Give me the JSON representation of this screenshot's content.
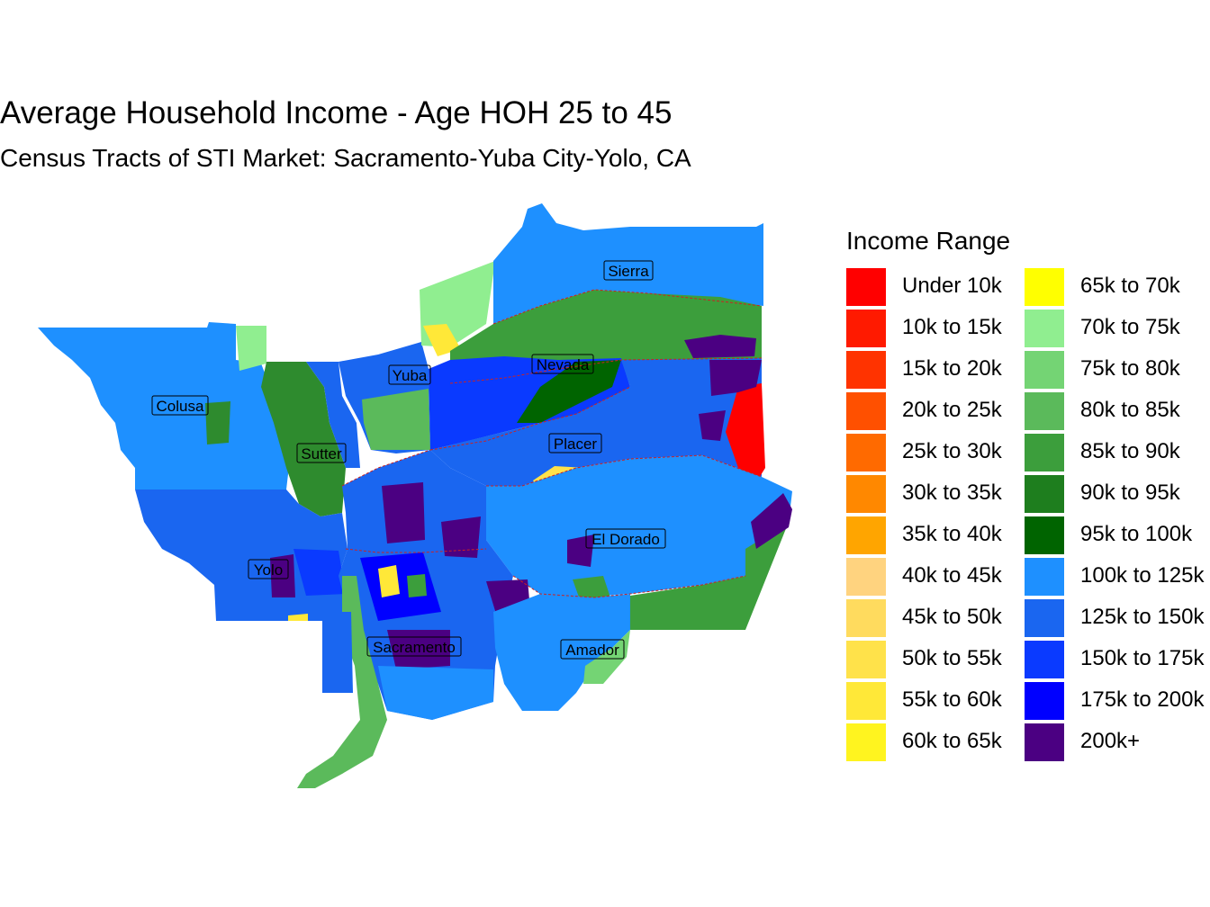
{
  "title": "Average Household Income - Age HOH 25 to 45",
  "subtitle": "Census Tracts of STI Market: Sacramento-Yuba City-Yolo, CA",
  "legend": {
    "title": "Income Range",
    "items": [
      {
        "label": "Under 10k",
        "color": "#FF0000"
      },
      {
        "label": "10k to 15k",
        "color": "#FF1A00"
      },
      {
        "label": "15k to 20k",
        "color": "#FF3300"
      },
      {
        "label": "20k to 25k",
        "color": "#FF5000"
      },
      {
        "label": "25k to 30k",
        "color": "#FF6A00"
      },
      {
        "label": "30k to 35k",
        "color": "#FF8800"
      },
      {
        "label": "35k to 40k",
        "color": "#FFA500"
      },
      {
        "label": "40k to 45k",
        "color": "#FFD37F"
      },
      {
        "label": "45k to 50k",
        "color": "#FFDB5E"
      },
      {
        "label": "50k to 55k",
        "color": "#FFE24A"
      },
      {
        "label": "55k to 60k",
        "color": "#FFE838"
      },
      {
        "label": "60k to 65k",
        "color": "#FFF41F"
      },
      {
        "label": "65k to 70k",
        "color": "#FFFF00"
      },
      {
        "label": "70k to 75k",
        "color": "#90EE90"
      },
      {
        "label": "75k to 80k",
        "color": "#74D474"
      },
      {
        "label": "80k to 85k",
        "color": "#5BBA5B"
      },
      {
        "label": "85k to 90k",
        "color": "#3C9E3C"
      },
      {
        "label": "90k to 95k",
        "color": "#1E7E1E"
      },
      {
        "label": "95k to 100k",
        "color": "#006400"
      },
      {
        "label": "100k to 125k",
        "color": "#1E90FF"
      },
      {
        "label": "125k to 150k",
        "color": "#1A66F0"
      },
      {
        "label": "150k to 175k",
        "color": "#0A3AFF"
      },
      {
        "label": "175k to 200k",
        "color": "#0000FF"
      },
      {
        "label": "200k+",
        "color": "#4B0082"
      }
    ]
  },
  "counties": [
    "Sierra",
    "Yuba",
    "Nevada",
    "Colusa",
    "Sutter",
    "Placer",
    "El Dorado",
    "Yolo",
    "Sacramento",
    "Amador"
  ]
}
